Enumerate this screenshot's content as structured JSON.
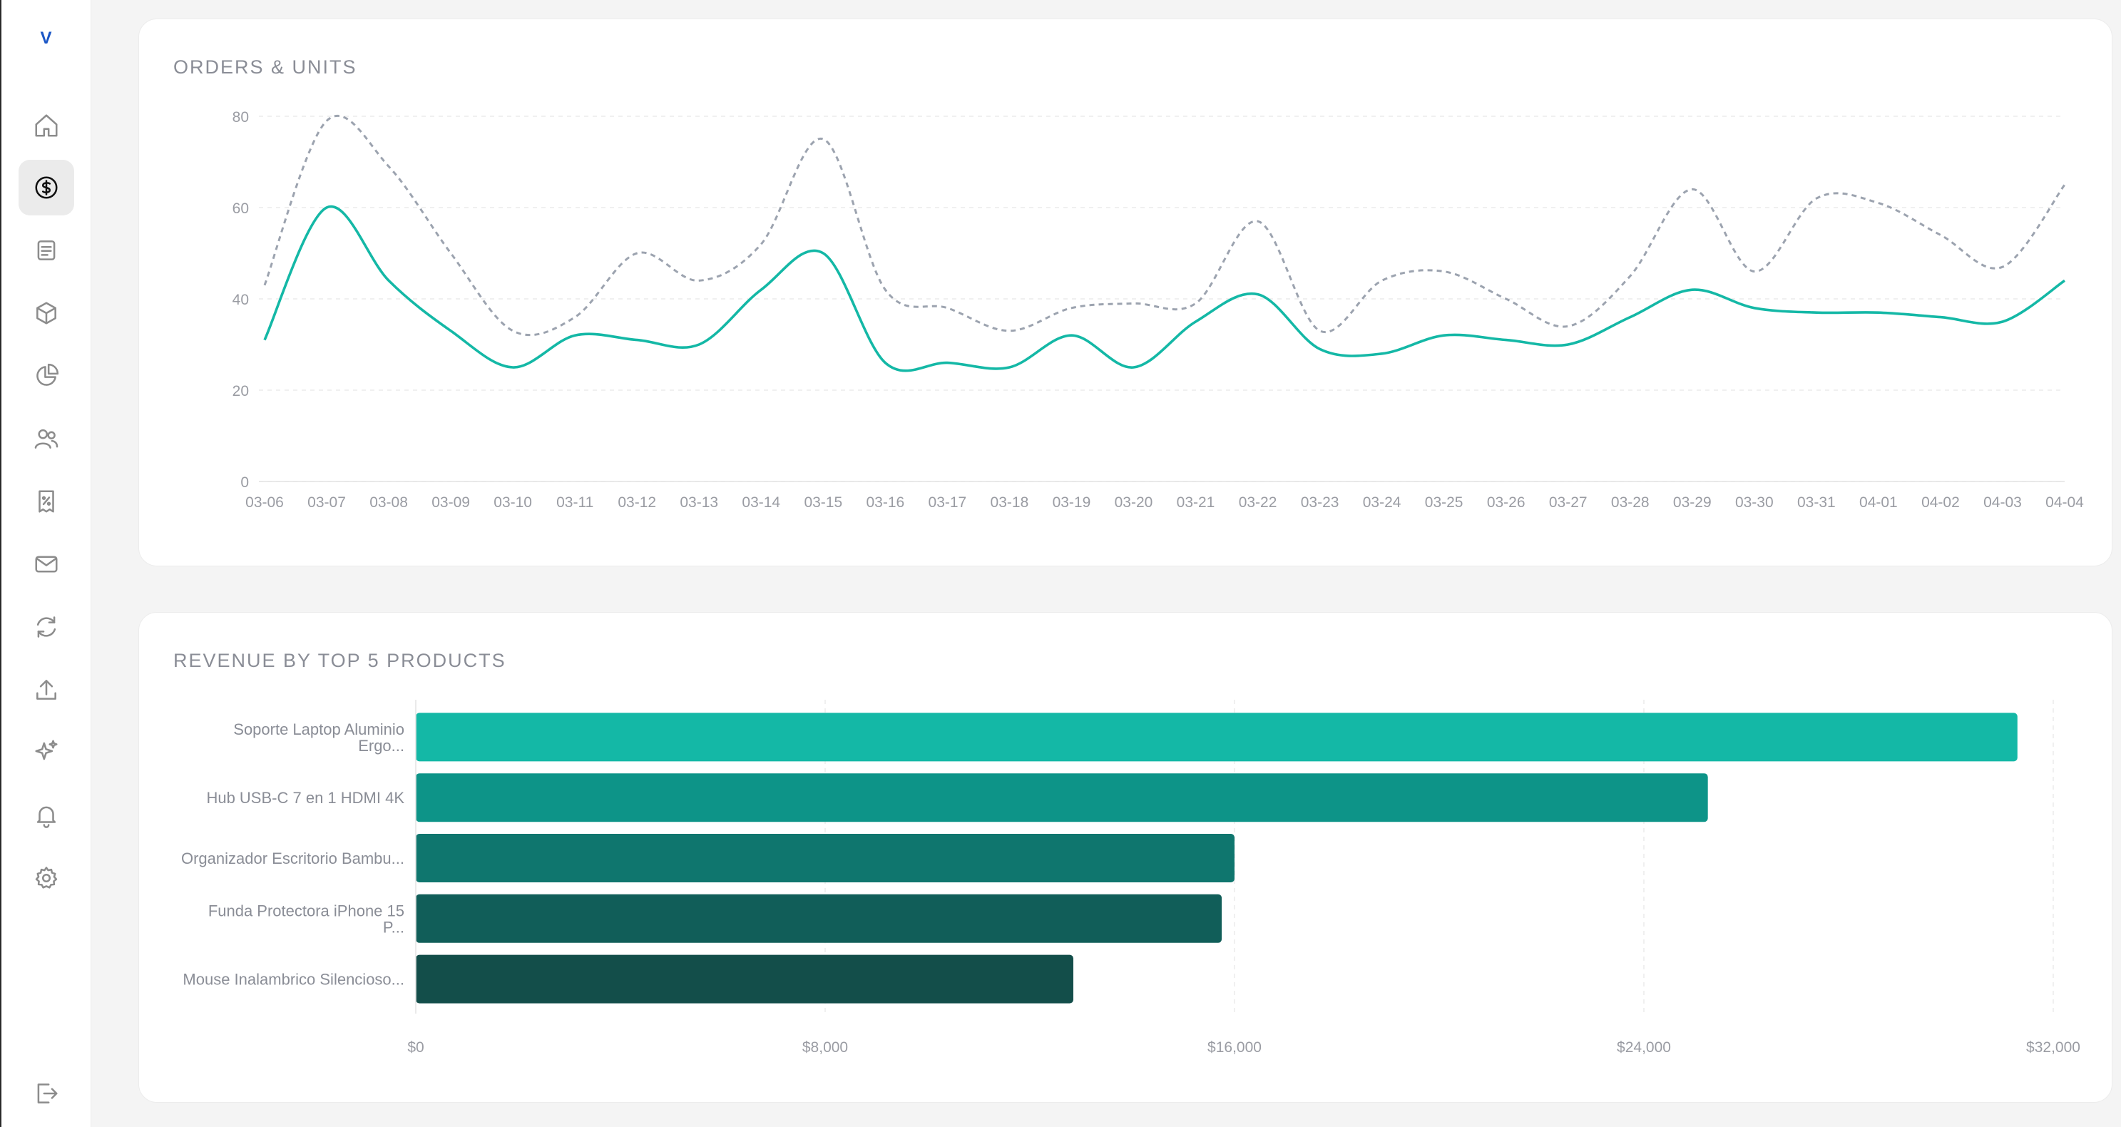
{
  "sidebar": {
    "logo": "V",
    "items": [
      {
        "icon": "home-icon",
        "label": "home"
      },
      {
        "icon": "dollar-icon",
        "label": "sales",
        "active": true
      },
      {
        "icon": "document-icon",
        "label": "orders"
      },
      {
        "icon": "box-icon",
        "label": "products"
      },
      {
        "icon": "pie-chart-icon",
        "label": "analytics"
      },
      {
        "icon": "users-icon",
        "label": "customers"
      },
      {
        "icon": "receipt-icon",
        "label": "discounts"
      },
      {
        "icon": "mail-icon",
        "label": "messages"
      },
      {
        "icon": "refresh-icon",
        "label": "sync"
      },
      {
        "icon": "upload-icon",
        "label": "upload"
      },
      {
        "icon": "sparkles-icon",
        "label": "ai"
      },
      {
        "icon": "bell-icon",
        "label": "notifications"
      },
      {
        "icon": "gear-icon",
        "label": "settings"
      }
    ],
    "logout_icon": "logout-icon"
  },
  "colors": {
    "accent": "#14b8a6",
    "line_units": "#9ca3af",
    "bars": [
      "#14b8a6",
      "#0d9488",
      "#0f766e",
      "#115e59",
      "#134e4a"
    ]
  },
  "chart_data": [
    {
      "type": "line",
      "title": "ORDERS & UNITS",
      "x": [
        "03-06",
        "03-07",
        "03-08",
        "03-09",
        "03-10",
        "03-11",
        "03-12",
        "03-13",
        "03-14",
        "03-15",
        "03-16",
        "03-17",
        "03-18",
        "03-19",
        "03-20",
        "03-21",
        "03-22",
        "03-23",
        "03-24",
        "03-25",
        "03-26",
        "03-27",
        "03-28",
        "03-29",
        "03-30",
        "03-31",
        "04-01",
        "04-02",
        "04-03",
        "04-04"
      ],
      "series": [
        {
          "style": "solid",
          "color": "#14b8a6",
          "values": [
            31,
            60,
            44,
            33,
            25,
            32,
            31,
            30,
            42,
            50,
            26,
            26,
            25,
            32,
            25,
            35,
            41,
            29,
            28,
            32,
            31,
            30,
            36,
            42,
            38,
            37,
            37,
            36,
            35,
            44
          ]
        },
        {
          "style": "dashed",
          "color": "#9ca3af",
          "values": [
            43,
            79,
            69,
            50,
            33,
            36,
            50,
            44,
            52,
            75,
            42,
            38,
            33,
            38,
            39,
            39,
            57,
            33,
            44,
            46,
            40,
            34,
            45,
            64,
            46,
            62,
            61,
            54,
            47,
            65
          ]
        }
      ],
      "ylim": [
        0,
        80
      ],
      "yticks": [
        0,
        20,
        40,
        60,
        80
      ],
      "grid": true
    },
    {
      "type": "bar",
      "orientation": "horizontal",
      "title": "REVENUE BY TOP 5 PRODUCTS",
      "categories": [
        [
          "Soporte Laptop Aluminio",
          "Ergo..."
        ],
        [
          "Hub USB-C 7 en 1 HDMI 4K"
        ],
        [
          "Organizador Escritorio Bambu..."
        ],
        [
          "Funda Protectora iPhone 15",
          "P..."
        ],
        [
          "Mouse Inalambrico Silencioso..."
        ]
      ],
      "values": [
        31300,
        25250,
        16000,
        15750,
        12850
      ],
      "xlim": [
        0,
        32000
      ],
      "xticks": [
        0,
        8000,
        16000,
        24000,
        32000
      ],
      "xtick_labels": [
        "$0",
        "$8,000",
        "$16,000",
        "$24,000",
        "$32,000"
      ],
      "grid": true
    }
  ]
}
